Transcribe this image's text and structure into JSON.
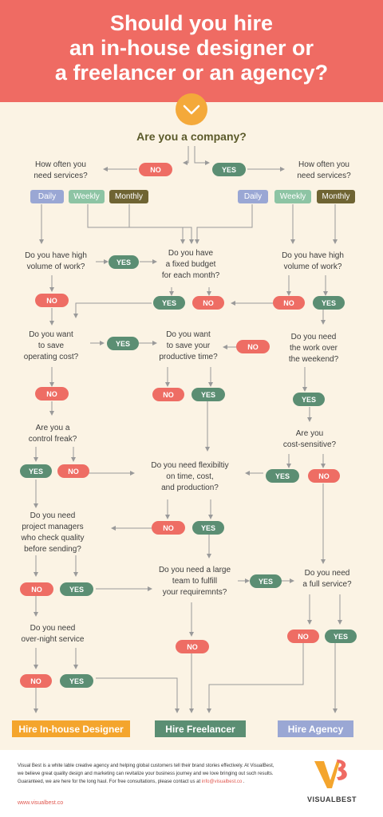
{
  "header": {
    "title_lines": [
      "Should you hire",
      "an in-house designer or",
      "a freelancer or an agency?"
    ]
  },
  "flow": {
    "start": "Are you a company?",
    "q_often_left": [
      "How often you",
      "need services?"
    ],
    "q_often_right": [
      "How often you",
      "need services?"
    ],
    "tags": {
      "daily": "Daily",
      "weekly": "Weekly",
      "monthly": "Monthly"
    },
    "q_high_volume_left": [
      "Do you have high",
      "volume of work?"
    ],
    "q_fixed_budget": [
      "Do you have",
      "a fixed budget",
      "for each month?"
    ],
    "q_high_volume_right": [
      "Do you have high",
      "volume of work?"
    ],
    "q_save_cost": [
      "Do you want",
      "to save",
      "operating cost?"
    ],
    "q_save_time": [
      "Do you want",
      "to save your",
      "productive time?"
    ],
    "q_weekend": [
      "Do you need",
      "the work over",
      "the weekend?"
    ],
    "q_control_freak": [
      "Are you a",
      "control freak?"
    ],
    "q_flexibility": [
      "Do you need flexibiltiy",
      "on time, cost,",
      "and production?"
    ],
    "q_cost_sensitive": [
      "Are you",
      "cost-sensitive?"
    ],
    "q_project_managers": [
      "Do you need",
      "project managers",
      "who check quality",
      "before sending?"
    ],
    "q_large_team": [
      "Do you need a large",
      "team to fulfill",
      "your requiremnts?"
    ],
    "q_full_service": [
      "Do you need",
      "a full service?"
    ],
    "q_overnight": [
      "Do you need",
      "over-night service"
    ],
    "yes": "YES",
    "no": "NO"
  },
  "results": {
    "inhouse": "Hire In-house Designer",
    "freelancer": "Hire Freelancer",
    "agency": "Hire Agency"
  },
  "footer": {
    "text_before": "Visual Best is a white lable creative agency and helping global customers tell their brand stories effectively. At VisualBest, we believe great quality design and marketing can revitalize your business journey and we love bringing out such results. Guaranteed, we are here for the long haul. For free consultations, please contact us at ",
    "email": "info@visualbest.co",
    "text_after": " .",
    "url": "www.visualbest.co",
    "logo_text": "VISUALBEST"
  },
  "colors": {
    "header": "#ef6b63",
    "background": "#fbf3e4",
    "no": "#ee6d64",
    "yes": "#5b8e73",
    "inhouse": "#f4a52d",
    "freelancer": "#5b8e73",
    "agency": "#9aa7d4",
    "chevron": "#f4a93a"
  }
}
